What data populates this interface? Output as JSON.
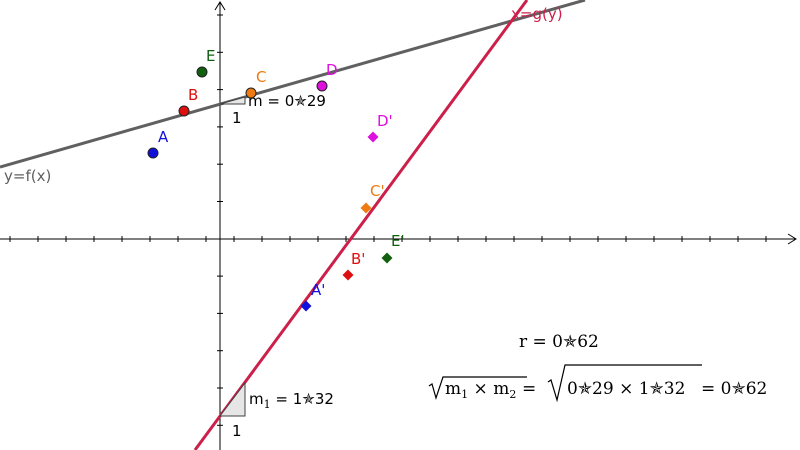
{
  "colors": {
    "fline": "#606060",
    "gline": "#cc1f4a",
    "A": "#1010dd",
    "B": "#dd1010",
    "C": "#ee7a10",
    "D": "#dd10dd",
    "E": "#106010",
    "slopeTri": "#e6e6e6"
  },
  "labels": {
    "fx": "y=f(x)",
    "gy": "x=g(y)",
    "slope1": "m = 0✯29",
    "slope1_run": "1",
    "slope2_m": "m",
    "slope2_sub": "1",
    "slope2_val": " = 1✯32",
    "slope2_run": "1",
    "r": "r  =  0✯62",
    "formula": {
      "m1": "m",
      "sub1": "1",
      "times": " × ",
      "m2": "m",
      "sub2": "2",
      "eq1": " = ",
      "inner": "0✯29 × 1✯32",
      "eq2": " = 0✯62"
    }
  },
  "points": [
    {
      "name": "A",
      "shape": "circle",
      "color": "A"
    },
    {
      "name": "B",
      "shape": "circle",
      "color": "B"
    },
    {
      "name": "C",
      "shape": "circle",
      "color": "C"
    },
    {
      "name": "D",
      "shape": "circle",
      "color": "D"
    },
    {
      "name": "E",
      "shape": "circle",
      "color": "E"
    },
    {
      "name": "A'",
      "shape": "diamond",
      "color": "A"
    },
    {
      "name": "B'",
      "shape": "diamond",
      "color": "B"
    },
    {
      "name": "C'",
      "shape": "diamond",
      "color": "C"
    },
    {
      "name": "D'",
      "shape": "diamond",
      "color": "D"
    },
    {
      "name": "E'",
      "shape": "diamond",
      "color": "E"
    }
  ]
}
